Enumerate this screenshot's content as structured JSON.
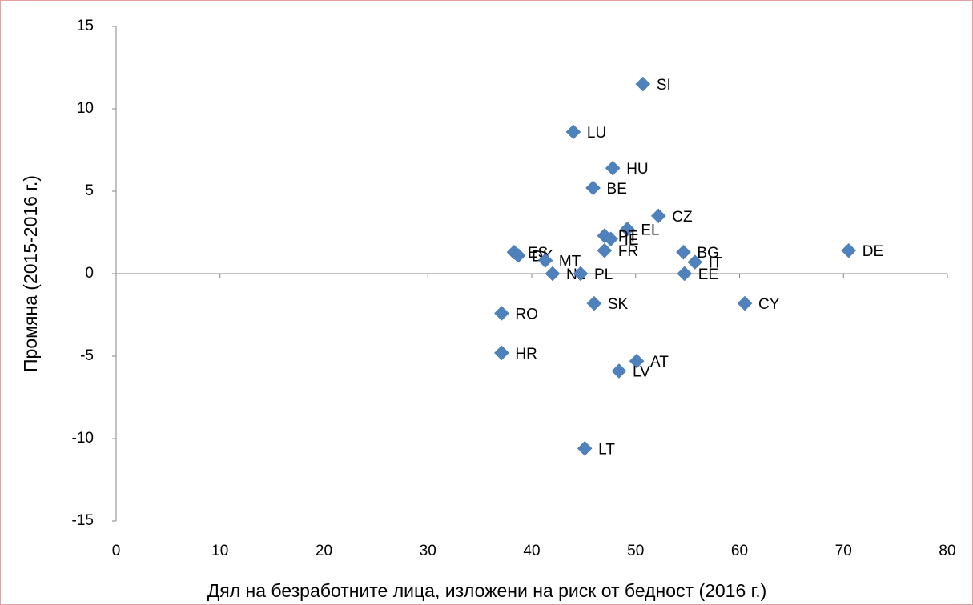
{
  "chart_data": {
    "type": "scatter",
    "x_label": "Дял на безработните лица, изложени на риск от бедност (2016 г.)",
    "y_label": "Промяна (2015-2016 г.)",
    "point_labels": [
      "SI",
      "LU",
      "HU",
      "BE",
      "CZ",
      "EL",
      "PT",
      "IE",
      "FR",
      "ES",
      "DK",
      "MT",
      "NL",
      "PL",
      "BG",
      "IT",
      "EE",
      "DE",
      "CY",
      "SK",
      "RO",
      "HR",
      "AT",
      "LV",
      "LT"
    ],
    "x": [
      50.7,
      44.0,
      47.8,
      45.9,
      52.2,
      49.2,
      47.0,
      47.6,
      47.0,
      38.3,
      38.7,
      41.3,
      42.0,
      44.7,
      54.6,
      55.7,
      54.7,
      70.5,
      60.5,
      46.0,
      37.1,
      37.1,
      50.1,
      48.4,
      45.1
    ],
    "values": [
      11.5,
      8.6,
      6.4,
      5.2,
      3.5,
      2.7,
      2.3,
      2.1,
      1.4,
      1.3,
      1.1,
      0.8,
      0.0,
      0.0,
      1.3,
      0.7,
      0.0,
      1.4,
      -1.8,
      -1.8,
      -2.4,
      -4.8,
      -5.3,
      -5.9,
      -10.6
    ],
    "color": "#4f81bd",
    "xlim": [
      0,
      80
    ],
    "xticks": [
      0,
      10,
      20,
      30,
      40,
      50,
      60,
      70,
      80
    ],
    "ylim": [
      -15,
      15
    ],
    "yticks": [
      -15,
      -10,
      -5,
      0,
      5,
      10,
      15
    ],
    "grid": false
  }
}
